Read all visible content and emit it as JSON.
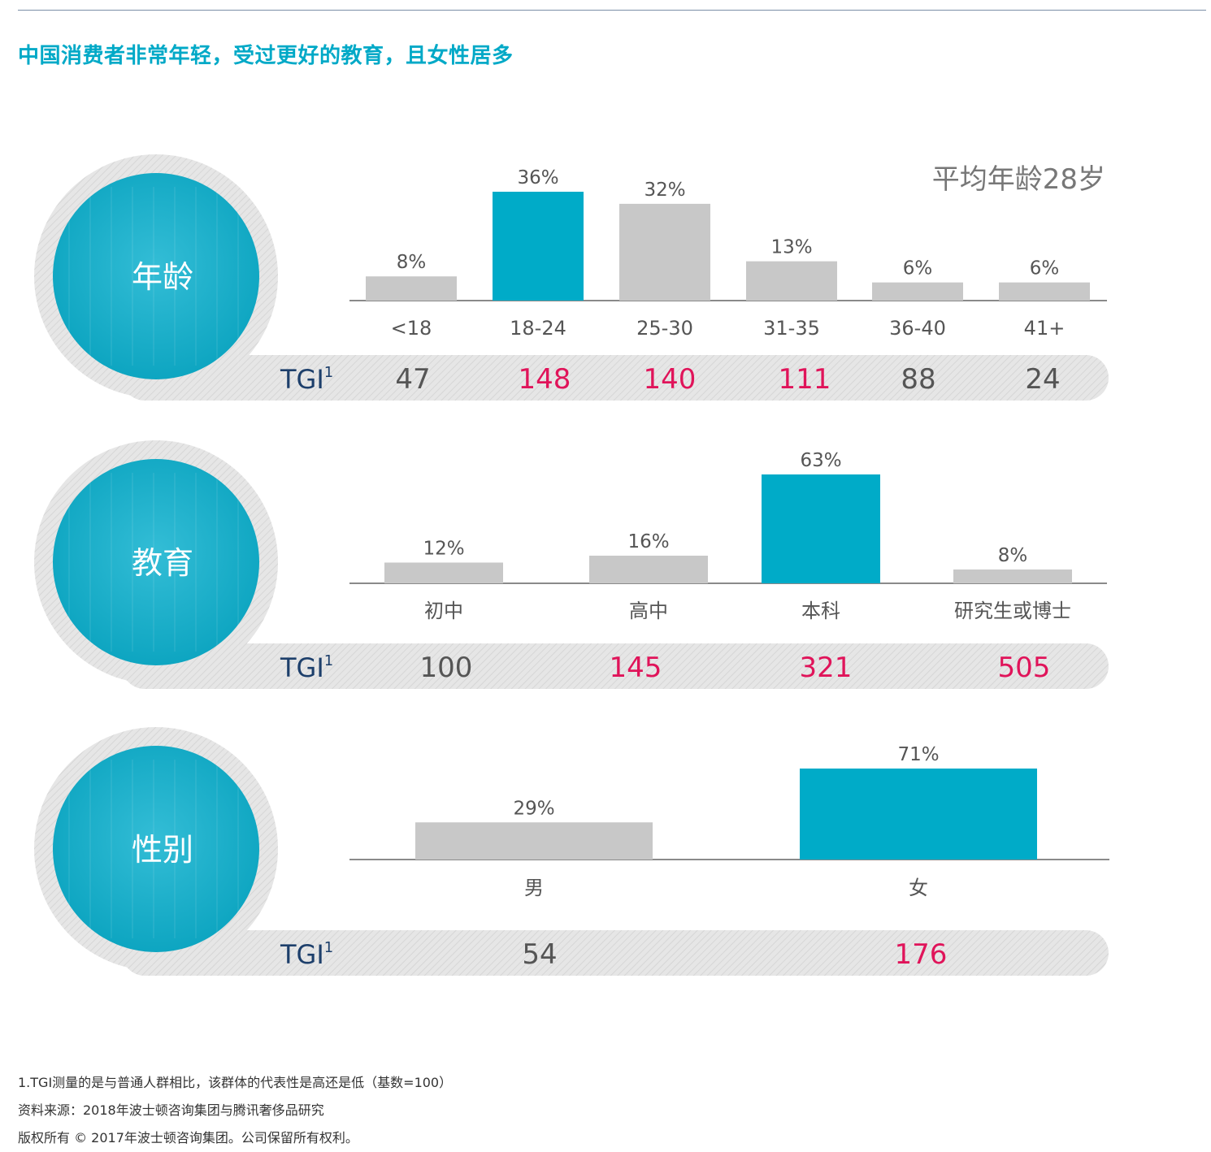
{
  "title": "中国消费者非常年轻，受过更好的教育，且女性居多",
  "tgi_label": "TGI",
  "tgi_sup": "1",
  "colors": {
    "highlight": "#00abc8",
    "base": "#c8c8c8",
    "tgi_high": "#e0145a",
    "tgi_low": "#555555",
    "title": "#00a9c7",
    "tgi_label": "#1d3f6b"
  },
  "chart_data": [
    {
      "type": "bar",
      "section_label": "年龄",
      "annotation": "平均年龄28岁",
      "categories": [
        "<18",
        "18-24",
        "25-30",
        "31-35",
        "36-40",
        "41+"
      ],
      "values": [
        8,
        36,
        32,
        13,
        6,
        6
      ],
      "value_labels": [
        "8%",
        "36%",
        "32%",
        "13%",
        "6%",
        "6%"
      ],
      "highlight": [
        1
      ],
      "tgi": [
        "47",
        "148",
        "140",
        "111",
        "88",
        "24"
      ],
      "tgi_high": [
        false,
        true,
        true,
        true,
        false,
        false
      ],
      "unit": "%"
    },
    {
      "type": "bar",
      "section_label": "教育",
      "categories": [
        "初中",
        "高中",
        "本科",
        "研究生或博士"
      ],
      "values": [
        12,
        16,
        63,
        8
      ],
      "value_labels": [
        "12%",
        "16%",
        "63%",
        "8%"
      ],
      "highlight": [
        2
      ],
      "tgi": [
        "100",
        "145",
        "321",
        "505"
      ],
      "tgi_high": [
        false,
        true,
        true,
        true
      ],
      "unit": "%"
    },
    {
      "type": "bar",
      "section_label": "性别",
      "categories": [
        "男",
        "女"
      ],
      "values": [
        29,
        71
      ],
      "value_labels": [
        "29%",
        "71%"
      ],
      "highlight": [
        1
      ],
      "tgi": [
        "54",
        "176"
      ],
      "tgi_high": [
        false,
        true
      ],
      "unit": "%"
    }
  ],
  "footnotes": {
    "note": "1.TGI测量的是与普通人群相比，该群体的代表性是高还是低（基数=100）",
    "source": "资料来源：2018年波士顿咨询集团与腾讯奢侈品研究",
    "copyright": "版权所有 © 2017年波士顿咨询集团。公司保留所有权利。"
  }
}
